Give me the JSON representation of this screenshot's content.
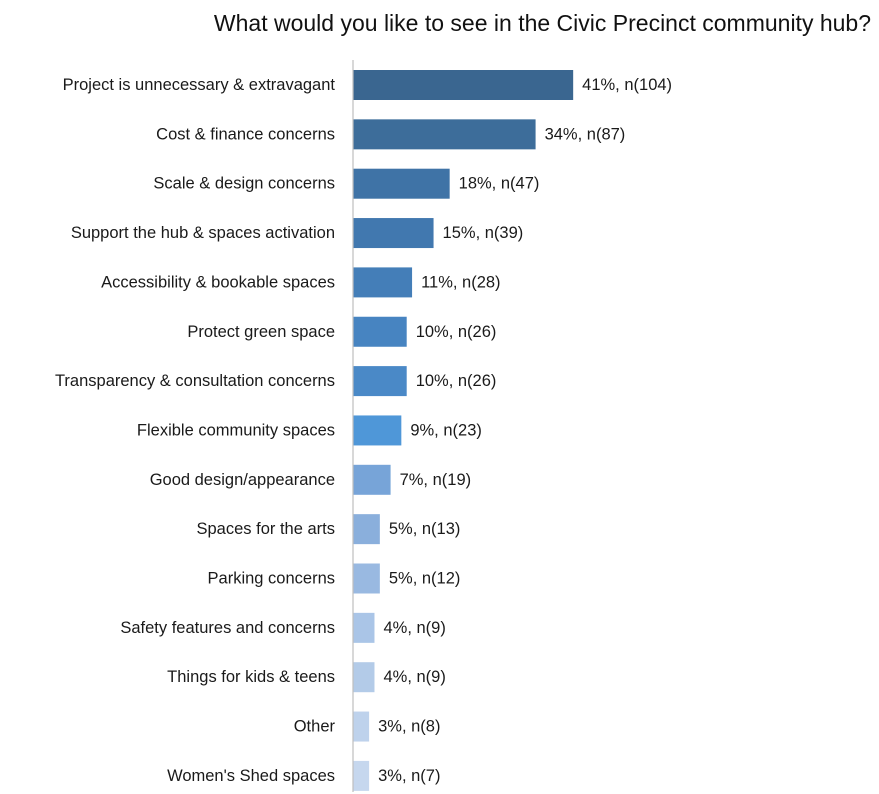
{
  "chart_data": {
    "type": "bar",
    "orientation": "horizontal",
    "title": "What would you like to see in the Civic Precinct community hub?",
    "xlabel": "",
    "ylabel": "",
    "grid": false,
    "categories": [
      "Project is unnecessary & extravagant",
      "Cost & finance concerns",
      "Scale & design concerns",
      "Support the hub & spaces activation",
      "Accessibility & bookable spaces",
      "Protect green space",
      "Transparency & consultation concerns",
      "Flexible community spaces",
      "Good design/appearance",
      "Spaces for the arts",
      "Parking concerns",
      "Safety features and concerns",
      "Things for kids & teens",
      "Other",
      "Women's Shed spaces"
    ],
    "values": [
      41,
      34,
      18,
      15,
      11,
      10,
      10,
      9,
      7,
      5,
      5,
      4,
      4,
      3,
      3
    ],
    "counts": [
      104,
      87,
      47,
      39,
      28,
      26,
      26,
      23,
      19,
      13,
      12,
      9,
      9,
      8,
      7
    ],
    "data_labels": [
      "41%, n(104)",
      "34%, n(87)",
      "18%, n(47)",
      "15%, n(39)",
      "11%, n(28)",
      "10%, n(26)",
      "10%, n(26)",
      "9%, n(23)",
      "7%, n(19)",
      "5%, n(13)",
      "5%, n(12)",
      "4%, n(9)",
      "4%, n(9)",
      "3%, n(8)",
      "3%, n(7)"
    ],
    "bar_colors": [
      "#3a6690",
      "#3d6d9a",
      "#3f73a6",
      "#4178af",
      "#447eb8",
      "#4784c1",
      "#4a89c7",
      "#4f97d8",
      "#77a4d8",
      "#8aafdc",
      "#99b9e1",
      "#aac5e7",
      "#b3cbe8",
      "#bed2ec",
      "#c6d7ee"
    ],
    "axis_line_color": "#bfbfbf"
  }
}
